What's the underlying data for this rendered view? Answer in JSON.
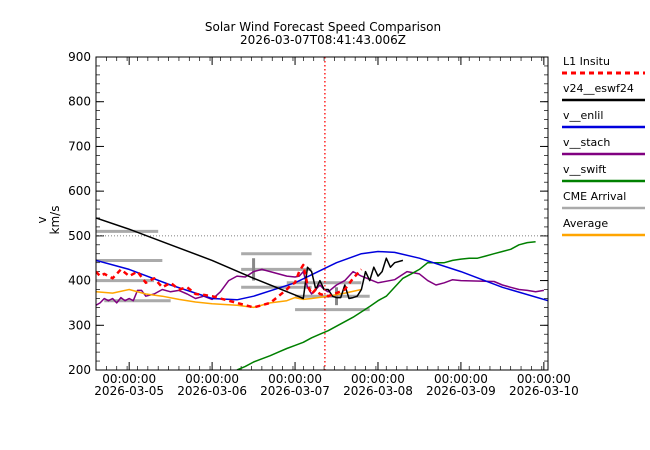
{
  "chart_data": {
    "type": "line",
    "title": "Solar Wind Forecast Speed Comparison",
    "subtitle": "2026-03-07T08:41:43.006Z",
    "ylabel": "v",
    "ylabel_units": "km/s",
    "ylim": [
      200,
      900
    ],
    "xlim": [
      4.6,
      10.05
    ],
    "yticks": [
      200,
      300,
      400,
      500,
      600,
      700,
      800,
      900
    ],
    "xticks": [
      {
        "x": 5,
        "time": "00:00:00",
        "date": "2026-03-05"
      },
      {
        "x": 6,
        "time": "00:00:00",
        "date": "2026-03-06"
      },
      {
        "x": 7,
        "time": "00:00:00",
        "date": "2026-03-07"
      },
      {
        "x": 8,
        "time": "00:00:00",
        "date": "2026-03-08"
      },
      {
        "x": 9,
        "time": "00:00:00",
        "date": "2026-03-09"
      },
      {
        "x": 10,
        "time": "00:00:00",
        "date": "2026-03-10"
      }
    ],
    "reference_line_y": 500,
    "now_marker_x": 7.36,
    "legend_position": "right",
    "series": [
      {
        "name": "L1 Insitu",
        "color": "#ff0000",
        "dash": "dashed",
        "x": [
          4.6,
          4.65,
          4.7,
          4.8,
          4.9,
          5.0,
          5.1,
          5.2,
          5.3,
          5.4,
          5.5,
          5.6,
          5.7,
          5.8,
          5.9,
          6.0,
          6.1,
          6.2,
          6.3,
          6.4,
          6.5,
          6.6,
          6.7,
          6.8,
          6.9,
          6.95,
          7.0,
          7.05,
          7.1,
          7.15,
          7.2,
          7.25,
          7.3,
          7.4,
          7.5,
          7.6,
          7.7,
          7.8
        ],
        "y": [
          420,
          410,
          415,
          405,
          425,
          410,
          420,
          395,
          405,
          385,
          395,
          380,
          385,
          370,
          368,
          365,
          360,
          355,
          350,
          345,
          340,
          345,
          350,
          365,
          380,
          390,
          395,
          420,
          435,
          390,
          370,
          380,
          370,
          365,
          372,
          380,
          405,
          425
        ]
      },
      {
        "name": "v24__eswf24",
        "color": "#000000",
        "dash": "solid",
        "x": [
          4.6,
          5.0,
          5.5,
          6.0,
          6.5,
          7.0,
          7.1,
          7.15,
          7.2,
          7.25,
          7.3,
          7.35,
          7.4,
          7.45,
          7.5,
          7.55,
          7.6,
          7.65,
          7.7,
          7.75,
          7.8,
          7.85,
          7.9,
          7.95,
          8.0,
          8.05,
          8.1,
          8.15,
          8.2,
          8.3
        ],
        "y": [
          540,
          515,
          480,
          445,
          405,
          368,
          360,
          430,
          420,
          380,
          400,
          380,
          380,
          365,
          362,
          362,
          390,
          360,
          362,
          365,
          380,
          420,
          400,
          430,
          410,
          420,
          450,
          430,
          440,
          445
        ]
      },
      {
        "name": "v__enlil",
        "color": "#0000dd",
        "dash": "solid",
        "x": [
          4.6,
          5.0,
          5.5,
          6.0,
          6.3,
          6.5,
          7.0,
          7.5,
          7.8,
          8.0,
          8.2,
          8.5,
          9.0,
          9.5,
          10.05
        ],
        "y": [
          445,
          425,
          390,
          360,
          357,
          365,
          395,
          440,
          460,
          465,
          463,
          450,
          420,
          385,
          355
        ]
      },
      {
        "name": "v__stach",
        "color": "#800080",
        "dash": "solid",
        "x": [
          4.6,
          4.65,
          4.7,
          4.75,
          4.8,
          4.85,
          4.9,
          4.95,
          5.0,
          5.05,
          5.1,
          5.15,
          5.2,
          5.3,
          5.4,
          5.5,
          5.6,
          5.7,
          5.8,
          5.9,
          6.0,
          6.1,
          6.2,
          6.3,
          6.4,
          6.5,
          6.6,
          6.7,
          6.8,
          6.9,
          7.0,
          7.05,
          7.1,
          7.15,
          7.2,
          7.25,
          7.3,
          7.35,
          7.4,
          7.5,
          7.6,
          7.7,
          7.8,
          8.0,
          8.2,
          8.35,
          8.5,
          8.6,
          8.7,
          8.8,
          8.9,
          9.0,
          9.4,
          9.5,
          9.6,
          9.7,
          9.8,
          9.9,
          10.0
        ],
        "y": [
          345,
          350,
          360,
          355,
          360,
          350,
          362,
          355,
          360,
          355,
          378,
          378,
          365,
          370,
          380,
          375,
          378,
          370,
          360,
          365,
          358,
          375,
          400,
          410,
          408,
          420,
          425,
          420,
          415,
          410,
          408,
          410,
          420,
          385,
          370,
          380,
          390,
          380,
          375,
          390,
          400,
          420,
          410,
          395,
          402,
          420,
          415,
          400,
          390,
          395,
          402,
          400,
          398,
          390,
          385,
          380,
          378,
          375,
          378
        ]
      },
      {
        "name": "v__swift",
        "color": "#008000",
        "dash": "solid",
        "x": [
          6.3,
          6.4,
          6.5,
          6.6,
          6.7,
          6.8,
          6.9,
          7.0,
          7.1,
          7.2,
          7.3,
          7.4,
          7.5,
          7.6,
          7.7,
          7.8,
          7.9,
          8.0,
          8.1,
          8.2,
          8.3,
          8.4,
          8.5,
          8.6,
          8.7,
          8.8,
          8.9,
          9.0,
          9.1,
          9.2,
          9.3,
          9.4,
          9.5,
          9.6,
          9.7,
          9.8,
          9.9
        ],
        "y": [
          200,
          208,
          218,
          225,
          232,
          240,
          248,
          255,
          262,
          272,
          280,
          288,
          298,
          308,
          318,
          330,
          342,
          355,
          365,
          385,
          405,
          415,
          425,
          440,
          440,
          440,
          445,
          448,
          450,
          450,
          455,
          460,
          465,
          470,
          480,
          485,
          487
        ]
      },
      {
        "name": "Average",
        "color": "#ffa500",
        "dash": "solid",
        "x": [
          4.6,
          4.8,
          5.0,
          5.2,
          5.4,
          5.6,
          5.8,
          6.0,
          6.3,
          6.5,
          6.7,
          6.9,
          7.0,
          7.1,
          7.2,
          7.4,
          7.6,
          7.8
        ],
        "y": [
          375,
          372,
          380,
          370,
          365,
          358,
          352,
          348,
          345,
          340,
          350,
          355,
          362,
          358,
          360,
          365,
          372,
          380
        ]
      }
    ],
    "cme_arrival": {
      "name": "CME Arrival",
      "color": "#aaaaaa",
      "markers": [
        {
          "x_start": 4.6,
          "x_end": 5.35,
          "y": 510
        },
        {
          "x_start": 4.6,
          "x_end": 5.4,
          "y": 445
        },
        {
          "x_start": 4.6,
          "x_end": 5.3,
          "y": 400
        },
        {
          "x_start": 4.7,
          "x_end": 5.5,
          "y": 355
        },
        {
          "x_start": 6.35,
          "x_end": 7.2,
          "y": 460
        },
        {
          "x_start": 6.35,
          "x_end": 7.2,
          "y": 425
        },
        {
          "x_start": 6.35,
          "x_end": 7.2,
          "y": 385
        },
        {
          "x_start": 6.9,
          "x_end": 7.8,
          "y": 395
        },
        {
          "x_start": 7.0,
          "x_end": 7.9,
          "y": 365
        },
        {
          "x_start": 7.0,
          "x_end": 7.9,
          "y": 335
        }
      ],
      "crosses": [
        {
          "x": 6.5,
          "y": 425,
          "y_low": 400,
          "y_high": 450
        },
        {
          "x": 7.5,
          "y": 365,
          "y_low": 345,
          "y_high": 385
        }
      ]
    }
  }
}
